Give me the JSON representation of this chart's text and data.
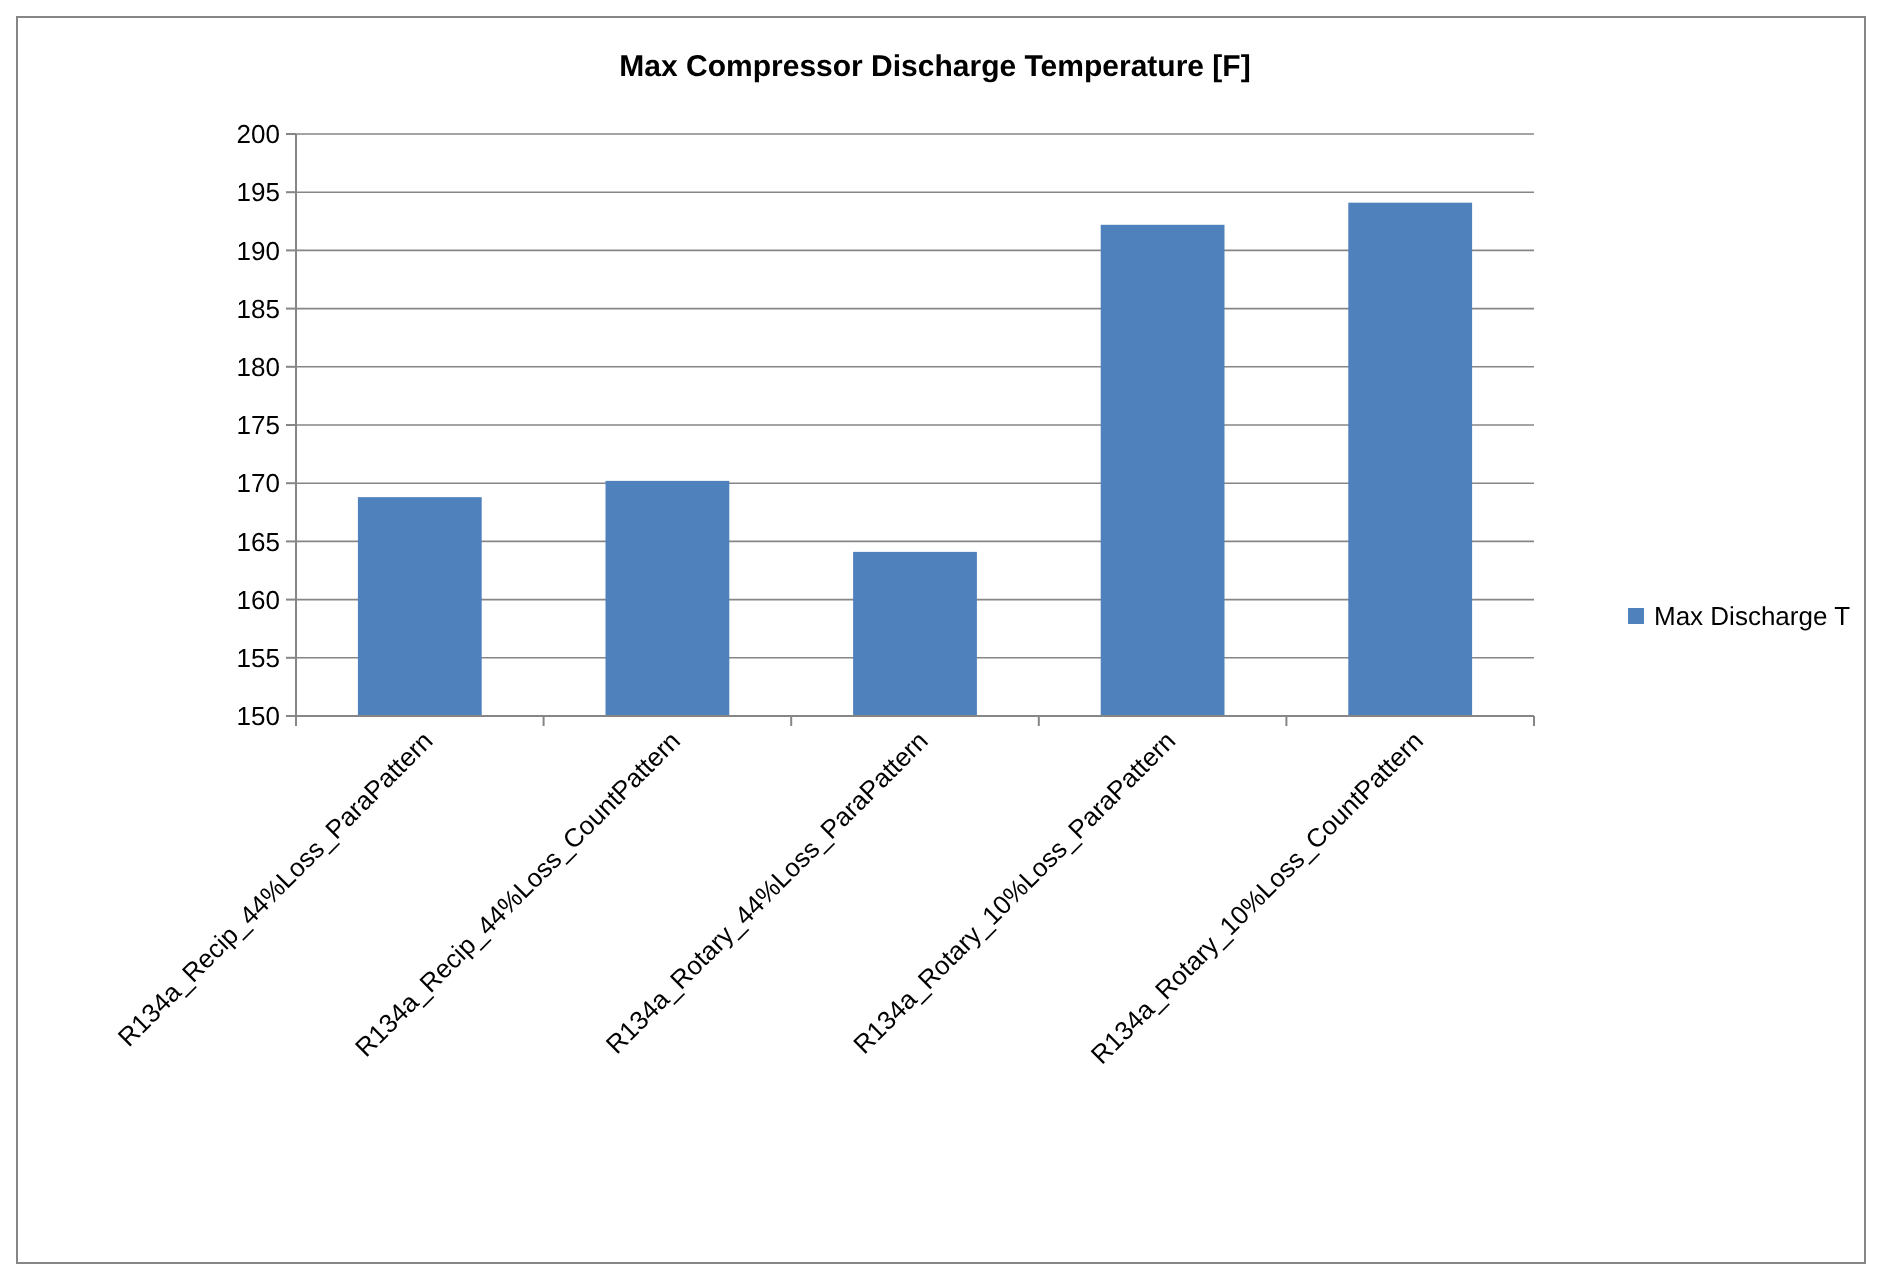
{
  "chart_data": {
    "type": "bar",
    "title": "Max Compressor Discharge Temperature [F]",
    "categories": [
      "R134a_Recip_44%Loss_ParaPattern",
      "R134a_Recip_44%Loss_CountPattern",
      "R134a_Rotary_44%Loss_ParaPattern",
      "R134a_Rotary_10%Loss_ParaPattern",
      "R134a_Rotary_10%Loss_CountPattern"
    ],
    "series": [
      {
        "name": "Max Discharge T",
        "color": "#4f81bd",
        "values": [
          168.8,
          170.2,
          164.1,
          192.2,
          194.1
        ]
      }
    ],
    "ylim": [
      150,
      200
    ],
    "yticks": [
      150,
      155,
      160,
      165,
      170,
      175,
      180,
      185,
      190,
      195,
      200
    ],
    "grid": "y",
    "legend": "right"
  }
}
